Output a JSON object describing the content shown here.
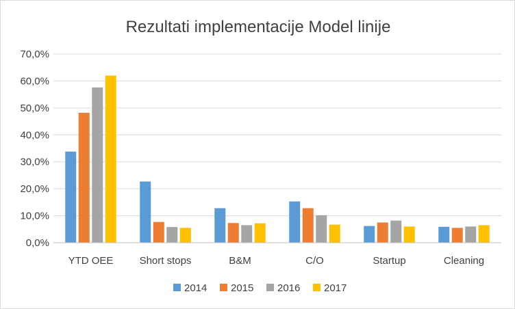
{
  "chart_data": {
    "type": "bar",
    "title": "Rezultati implementacije Model linije",
    "xlabel": "",
    "ylabel": "",
    "ylim": [
      0,
      70
    ],
    "y_tick_values": [
      0,
      10,
      20,
      30,
      40,
      50,
      60,
      70
    ],
    "y_tick_labels": [
      "0,0%",
      "10,0%",
      "20,0%",
      "30,0%",
      "40,0%",
      "50,0%",
      "60,0%",
      "70,0%"
    ],
    "grid": true,
    "legend_position": "bottom",
    "categories": [
      "YTD OEE",
      "Short stops",
      "B&M",
      "C/O",
      "Startup",
      "Cleaning"
    ],
    "series": [
      {
        "name": "2014",
        "color": "#5b9bd5",
        "values": [
          33.8,
          22.7,
          12.8,
          15.3,
          6.2,
          5.9
        ]
      },
      {
        "name": "2015",
        "color": "#ed7d31",
        "values": [
          48.2,
          7.7,
          7.3,
          12.8,
          7.5,
          5.5
        ]
      },
      {
        "name": "2016",
        "color": "#a5a5a5",
        "values": [
          57.6,
          5.8,
          6.5,
          10.2,
          8.2,
          6.0
        ]
      },
      {
        "name": "2017",
        "color": "#ffc000",
        "values": [
          62.0,
          5.5,
          7.2,
          6.7,
          6.0,
          6.5
        ]
      }
    ]
  }
}
